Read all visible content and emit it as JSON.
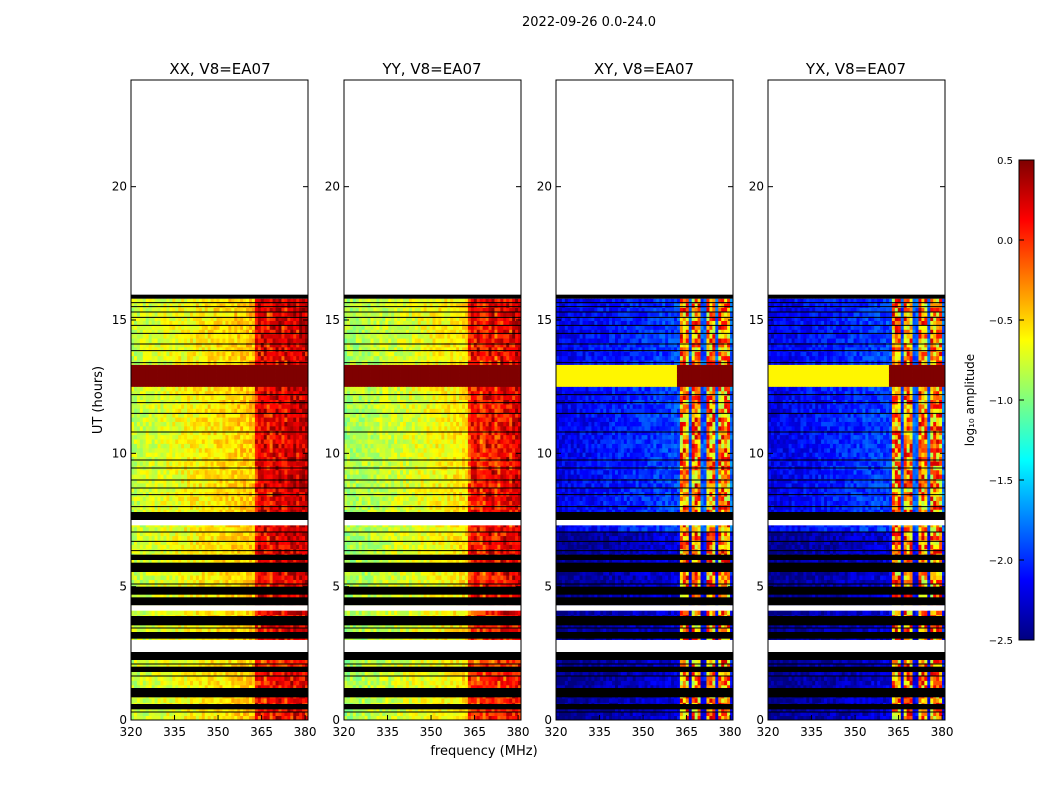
{
  "figure_title": "2022-09-26 0.0-24.0",
  "colors": {
    "jet": [
      "#00007f",
      "#0000ff",
      "#007fff",
      "#00ffff",
      "#7fff7f",
      "#ffff00",
      "#ff7f00",
      "#ff0000",
      "#7f0000"
    ],
    "frame": "#000000",
    "flag": "#000000",
    "empty": "#ffffff"
  },
  "chart_data": [
    {
      "type": "heatmap",
      "title": "XX, V8=EA07",
      "xlabel": "",
      "ylabel": "UT (hours)",
      "xlim": [
        320,
        381
      ],
      "ylim": [
        0,
        24
      ],
      "xticks": [
        "320",
        "335",
        "350",
        "365",
        "380"
      ],
      "yticks": [
        "0",
        "5",
        "10",
        "15",
        "20"
      ],
      "data_end_hour": 15.8,
      "pattern": "parallel",
      "base_level_low_freq": -0.8,
      "base_level_high_freq": -0.3,
      "strong_channels_mhz": [
        365,
        370,
        375,
        380
      ],
      "rfi_bands_hours": [
        [
          12.5,
          13.3
        ]
      ]
    },
    {
      "type": "heatmap",
      "title": "YY, V8=EA07",
      "xlabel": "frequency (MHz)",
      "ylabel": "",
      "xlim": [
        320,
        381
      ],
      "ylim": [
        0,
        24
      ],
      "xticks": [
        "320",
        "335",
        "350",
        "365",
        "380"
      ],
      "yticks": [
        "0",
        "5",
        "10",
        "15",
        "20"
      ],
      "data_end_hour": 15.8,
      "pattern": "parallel",
      "base_level_low_freq": -0.9,
      "base_level_high_freq": -0.4,
      "strong_channels_mhz": [
        365,
        370,
        375,
        380
      ],
      "rfi_bands_hours": [
        [
          12.5,
          13.3
        ]
      ]
    },
    {
      "type": "heatmap",
      "title": "XY, V8=EA07",
      "xlabel": "",
      "ylabel": "",
      "xlim": [
        320,
        381
      ],
      "ylim": [
        0,
        24
      ],
      "xticks": [
        "320",
        "335",
        "350",
        "365",
        "380"
      ],
      "yticks": [
        "0",
        "5",
        "10",
        "15",
        "20"
      ],
      "data_end_hour": 15.8,
      "pattern": "cross",
      "base_level_low_freq": -2.2,
      "base_level_high_freq": -1.8,
      "strong_channels_mhz": [
        364,
        368,
        373,
        378
      ],
      "rfi_bands_hours": [
        [
          12.5,
          13.3
        ]
      ]
    },
    {
      "type": "heatmap",
      "title": "YX, V8=EA07",
      "xlabel": "",
      "ylabel": "",
      "xlim": [
        320,
        381
      ],
      "ylim": [
        0,
        24
      ],
      "xticks": [
        "320",
        "335",
        "350",
        "365",
        "380"
      ],
      "yticks": [
        "0",
        "5",
        "10",
        "15",
        "20"
      ],
      "data_end_hour": 15.8,
      "pattern": "cross",
      "base_level_low_freq": -2.2,
      "base_level_high_freq": -1.8,
      "strong_channels_mhz": [
        364,
        368,
        373,
        378
      ],
      "rfi_bands_hours": [
        [
          12.5,
          13.3
        ]
      ]
    }
  ],
  "flagged_hours": [
    [
      0.4,
      0.6
    ],
    [
      0.85,
      1.2
    ],
    [
      1.8,
      2.0
    ],
    [
      2.25,
      2.55
    ],
    [
      3.05,
      3.3
    ],
    [
      3.55,
      3.9
    ],
    [
      4.3,
      4.6
    ],
    [
      4.7,
      5.0
    ],
    [
      5.55,
      5.9
    ],
    [
      6.0,
      6.2
    ],
    [
      7.5,
      7.8
    ]
  ],
  "flag_lines_hours": [
    0.3,
    1.05,
    1.65,
    2.1,
    3.45,
    5.1,
    6.35,
    6.7,
    7.05,
    8.0,
    8.45,
    8.7,
    9.0,
    9.45,
    9.75,
    10.8,
    11.5,
    11.9,
    12.2,
    13.4,
    13.85,
    14.1,
    14.5,
    14.8,
    15.1,
    15.3,
    15.5,
    15.65
  ],
  "colorbar": {
    "label": "log₁₀ amplitude",
    "min": -2.5,
    "max": 0.5,
    "ticks": [
      "0.5",
      "0.0",
      "−0.5",
      "−1.0",
      "−1.5",
      "−2.0",
      "−2.5"
    ],
    "tick_values": [
      0.5,
      0.0,
      -0.5,
      -1.0,
      -1.5,
      -2.0,
      -2.5
    ]
  }
}
